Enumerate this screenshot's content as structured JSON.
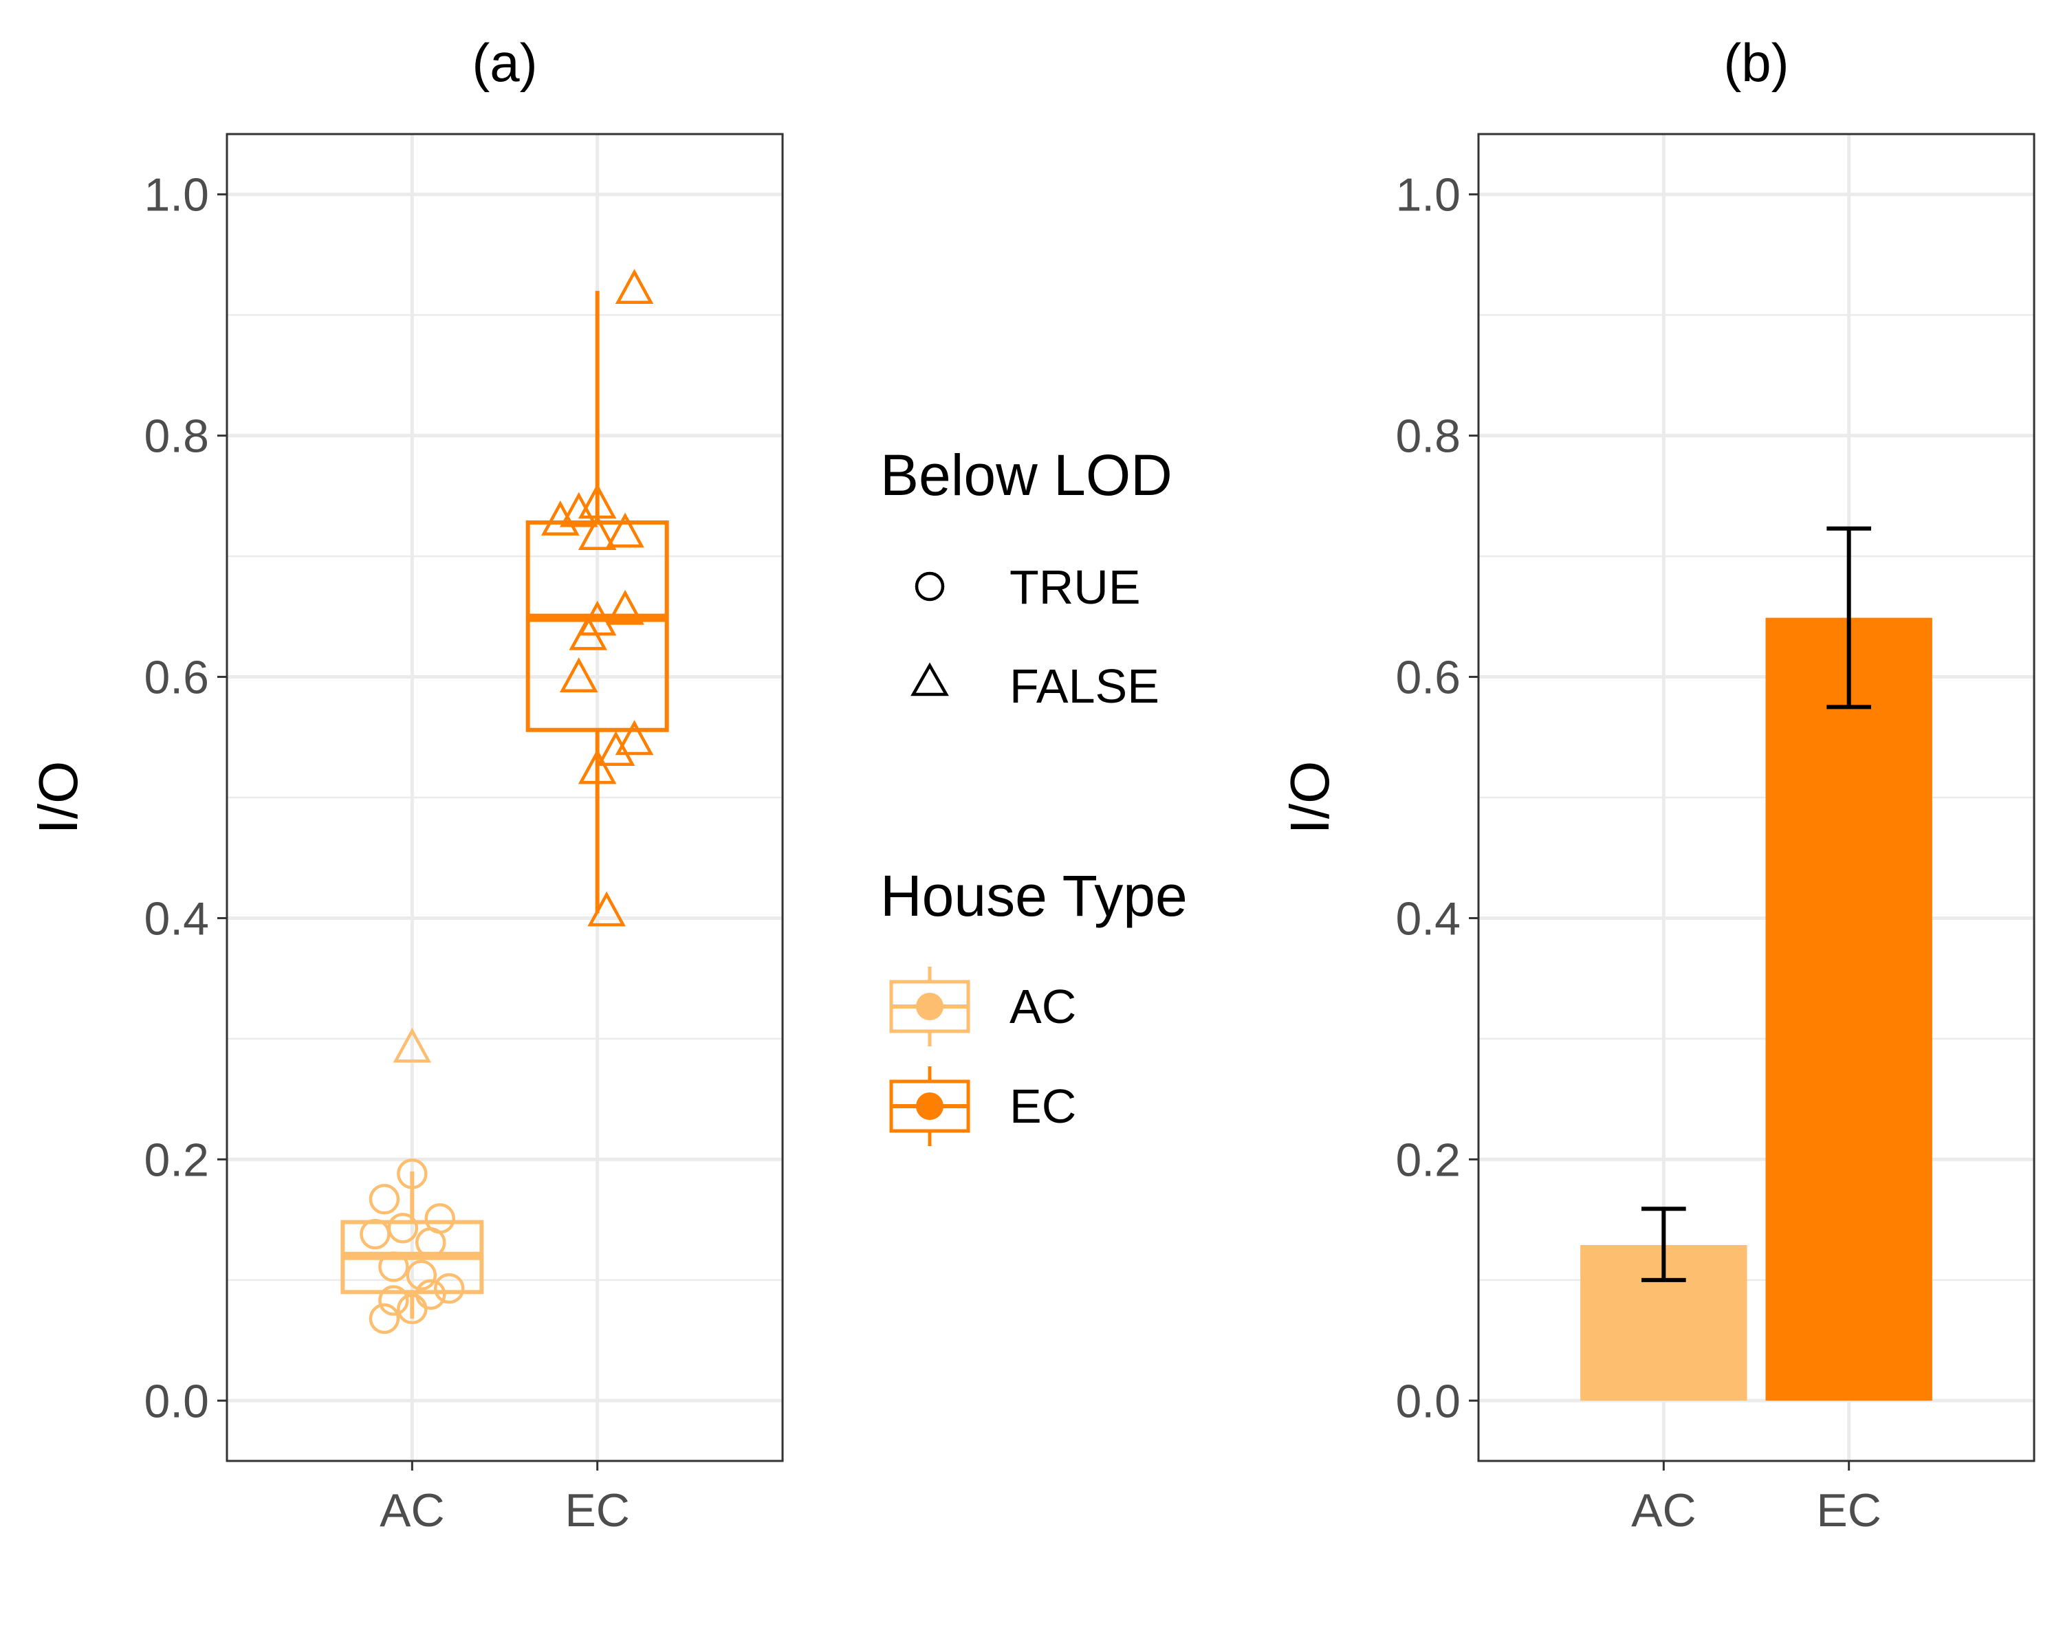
{
  "colors": {
    "AC": "#fdbf6f",
    "EC": "#ff7f00",
    "error_bar": "#000000"
  },
  "legend": {
    "lod": {
      "title": "Below LOD",
      "entries": [
        {
          "label": "TRUE",
          "shape": "circle"
        },
        {
          "label": "FALSE",
          "shape": "triangle"
        }
      ]
    },
    "house": {
      "title": "House Type",
      "entries": [
        {
          "label": "AC",
          "color_key": "AC"
        },
        {
          "label": "EC",
          "color_key": "EC"
        }
      ]
    }
  },
  "chart_data": [
    {
      "type": "box",
      "title": "(a)",
      "xlabel": "",
      "ylabel": "I/O",
      "ylim": [
        -0.05,
        1.05
      ],
      "yticks": [
        0.0,
        0.2,
        0.4,
        0.6,
        0.8,
        1.0
      ],
      "ytick_labels": [
        "0.0",
        "0.2",
        "0.4",
        "0.6",
        "0.8",
        "1.0"
      ],
      "categories": [
        "AC",
        "EC"
      ],
      "grid": true,
      "boxes": [
        {
          "category": "AC",
          "q1": 0.09,
          "median": 0.12,
          "q3": 0.148,
          "whisker_low": 0.068,
          "whisker_high": 0.19
        },
        {
          "category": "EC",
          "q1": 0.556,
          "median": 0.649,
          "q3": 0.728,
          "whisker_low": 0.404,
          "whisker_high": 0.92
        }
      ],
      "points": [
        {
          "category": "AC",
          "y": 0.291,
          "below_lod": false,
          "dx": 0.0
        },
        {
          "category": "AC",
          "y": 0.188,
          "below_lod": true,
          "dx": 0.0
        },
        {
          "category": "AC",
          "y": 0.167,
          "below_lod": true,
          "dx": -0.03
        },
        {
          "category": "AC",
          "y": 0.151,
          "below_lod": true,
          "dx": 0.03
        },
        {
          "category": "AC",
          "y": 0.143,
          "below_lod": true,
          "dx": -0.01
        },
        {
          "category": "AC",
          "y": 0.138,
          "below_lod": true,
          "dx": -0.04
        },
        {
          "category": "AC",
          "y": 0.131,
          "below_lod": true,
          "dx": 0.02
        },
        {
          "category": "AC",
          "y": 0.111,
          "below_lod": true,
          "dx": -0.02
        },
        {
          "category": "AC",
          "y": 0.104,
          "below_lod": true,
          "dx": 0.01
        },
        {
          "category": "AC",
          "y": 0.093,
          "below_lod": true,
          "dx": 0.04
        },
        {
          "category": "AC",
          "y": 0.088,
          "below_lod": true,
          "dx": 0.02
        },
        {
          "category": "AC",
          "y": 0.083,
          "below_lod": true,
          "dx": -0.02
        },
        {
          "category": "AC",
          "y": 0.076,
          "below_lod": true,
          "dx": 0.0
        },
        {
          "category": "AC",
          "y": 0.068,
          "below_lod": true,
          "dx": -0.03
        },
        {
          "category": "EC",
          "y": 0.92,
          "below_lod": false,
          "dx": 0.04
        },
        {
          "category": "EC",
          "y": 0.742,
          "below_lod": false,
          "dx": 0.0
        },
        {
          "category": "EC",
          "y": 0.735,
          "below_lod": false,
          "dx": -0.02
        },
        {
          "category": "EC",
          "y": 0.728,
          "below_lod": false,
          "dx": -0.04
        },
        {
          "category": "EC",
          "y": 0.718,
          "below_lod": false,
          "dx": 0.03
        },
        {
          "category": "EC",
          "y": 0.716,
          "below_lod": false,
          "dx": 0.0
        },
        {
          "category": "EC",
          "y": 0.654,
          "below_lod": false,
          "dx": 0.03
        },
        {
          "category": "EC",
          "y": 0.645,
          "below_lod": false,
          "dx": 0.0
        },
        {
          "category": "EC",
          "y": 0.633,
          "below_lod": false,
          "dx": -0.01
        },
        {
          "category": "EC",
          "y": 0.598,
          "below_lod": false,
          "dx": -0.02
        },
        {
          "category": "EC",
          "y": 0.546,
          "below_lod": false,
          "dx": 0.04
        },
        {
          "category": "EC",
          "y": 0.537,
          "below_lod": false,
          "dx": 0.02
        },
        {
          "category": "EC",
          "y": 0.522,
          "below_lod": false,
          "dx": 0.0
        },
        {
          "category": "EC",
          "y": 0.404,
          "below_lod": false,
          "dx": 0.01
        }
      ]
    },
    {
      "type": "bar",
      "title": "(b)",
      "xlabel": "",
      "ylabel": "I/O",
      "ylim": [
        -0.05,
        1.05
      ],
      "yticks": [
        0.0,
        0.2,
        0.4,
        0.6,
        0.8,
        1.0
      ],
      "ytick_labels": [
        "0.0",
        "0.2",
        "0.4",
        "0.6",
        "0.8",
        "1.0"
      ],
      "categories": [
        "AC",
        "EC"
      ],
      "grid": true,
      "values": [
        0.129,
        0.649
      ],
      "error_low": [
        0.1,
        0.575
      ],
      "error_high": [
        0.159,
        0.723
      ]
    }
  ]
}
